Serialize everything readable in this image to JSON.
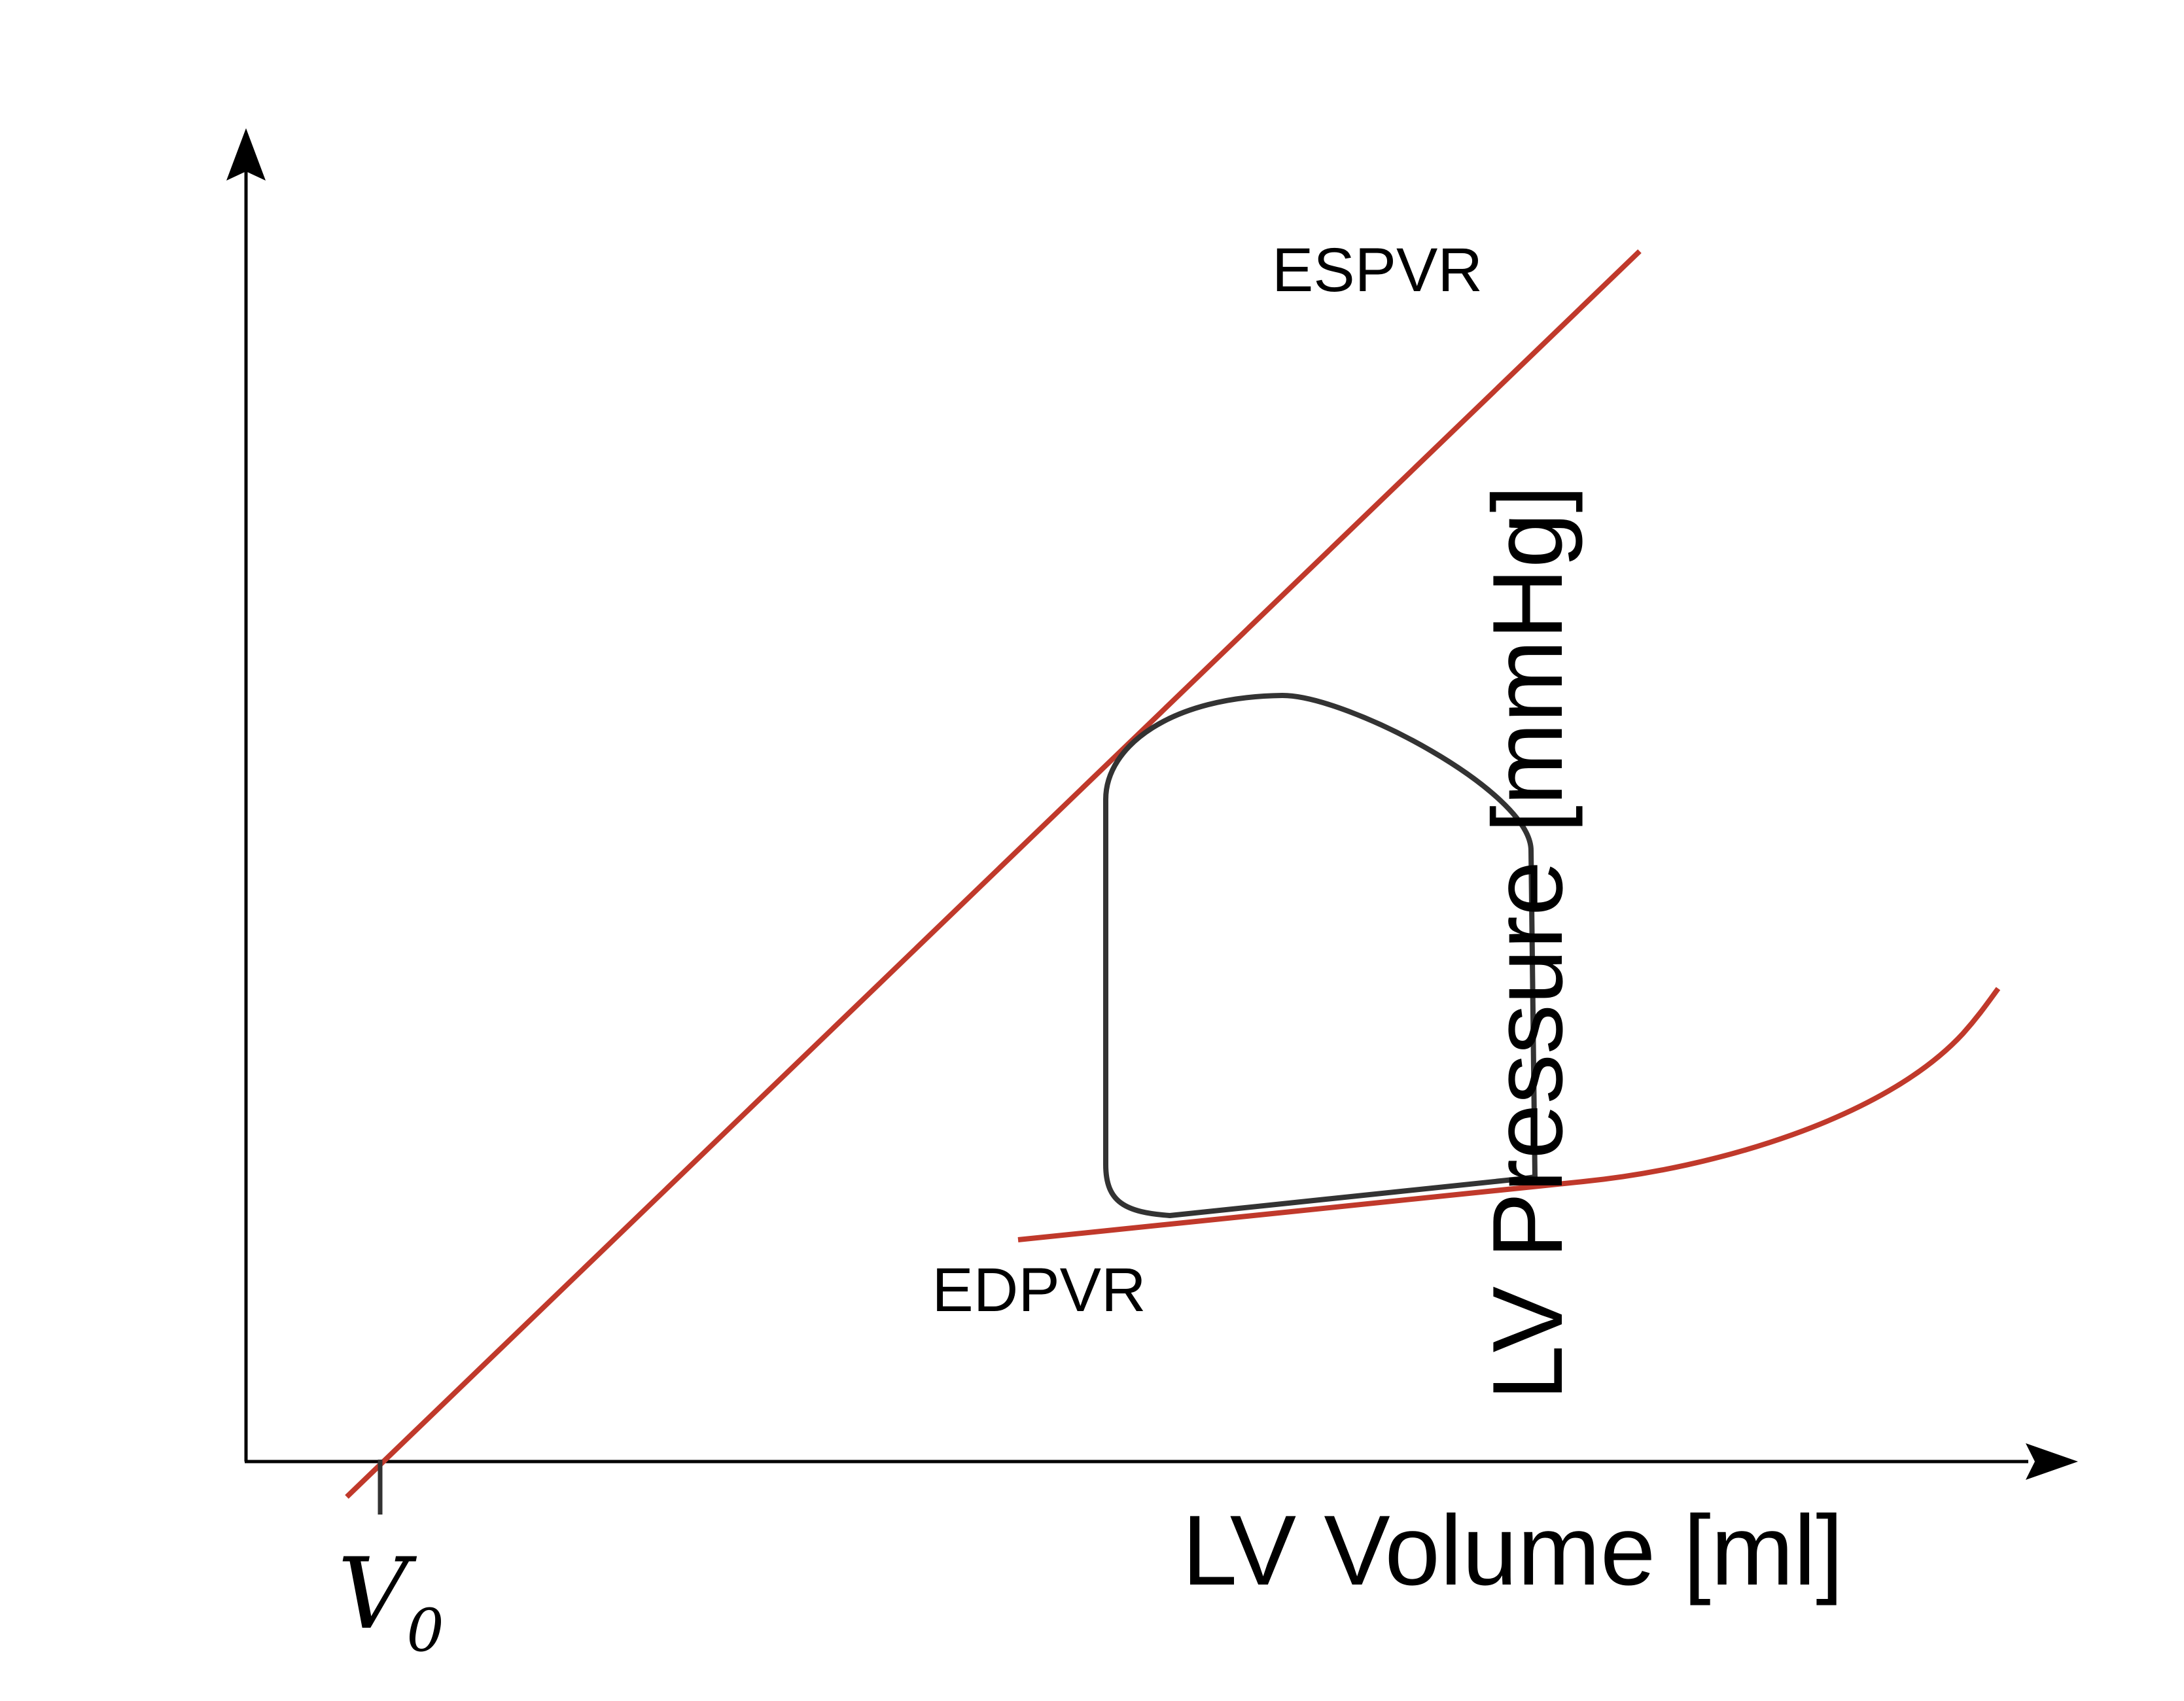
{
  "figure": {
    "x_axis_label": "LV Volume [ml]",
    "y_axis_label": "LV Pressure [mmHg]",
    "v0_label": "V",
    "v0_subscript": "0",
    "colors": {
      "relation_lines": "#c0392b",
      "pv_loop": "#333333",
      "axes": "#000000"
    }
  },
  "curves": {
    "espvr": {
      "label": "ESPVR",
      "shape": "straight line through V0"
    },
    "edpvr": {
      "label": "EDPVR",
      "shape": "exponential rising curve"
    },
    "pv_loop": {
      "label": "",
      "shape": "closed pressure-volume loop"
    }
  }
}
